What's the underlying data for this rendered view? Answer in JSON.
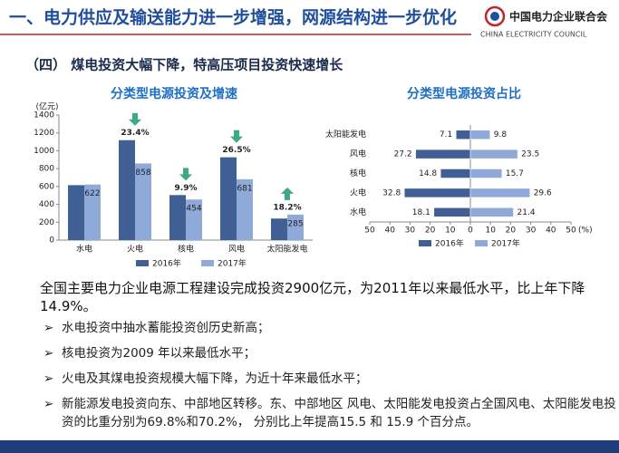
{
  "header": {
    "title": "一、电力供应及输送能力进一步增强，网源结构进一步优化",
    "logo_cn": "中国电力企业联合会",
    "logo_en": "CHINA ELECTRICITY COUNCIL"
  },
  "section_title": "（四） 煤电投资大幅下降，特高压项目投资快速增长",
  "chart_data": [
    {
      "type": "bar",
      "title": "分类型电源投资及增速",
      "y_label": "(亿元)",
      "categories": [
        "水电",
        "火电",
        "核电",
        "风电",
        "太阳能发电"
      ],
      "series": [
        {
          "name": "2016年",
          "color": "#3f5f95",
          "values": [
            615,
            1119,
            504,
            927,
            241
          ]
        },
        {
          "name": "2017年",
          "color": "#8fa9d9",
          "values": [
            622,
            858,
            454,
            681,
            285
          ],
          "labeled": true
        }
      ],
      "annotations": [
        null,
        {
          "text": "23.4%",
          "direction": "down"
        },
        {
          "text": "9.9%",
          "direction": "down"
        },
        {
          "text": "26.5%",
          "direction": "down"
        },
        {
          "text": "18.2%",
          "direction": "up"
        }
      ],
      "arrow_color": "#3daa82",
      "ylim": [
        0,
        1400
      ],
      "yticks": [
        0,
        200,
        400,
        600,
        800,
        1000,
        1200,
        1400
      ]
    },
    {
      "type": "butterfly",
      "title": "分类型电源投资占比",
      "x_unit": "(%)",
      "categories": [
        "太阳能发电",
        "风电",
        "核电",
        "火电",
        "水电"
      ],
      "series": [
        {
          "name": "2016年",
          "color": "#3f5f95",
          "values": [
            7.1,
            27.2,
            14.8,
            32.8,
            18.1
          ],
          "side": "left"
        },
        {
          "name": "2017年",
          "color": "#8fa9d9",
          "values": [
            9.8,
            23.5,
            15.7,
            29.6,
            21.4
          ],
          "side": "right"
        }
      ],
      "xlim": [
        -50,
        50
      ],
      "xticks": [
        {
          "value": -50,
          "label": "50"
        },
        {
          "value": -40,
          "label": "40"
        },
        {
          "value": -30,
          "label": "30"
        },
        {
          "value": -20,
          "label": "20"
        },
        {
          "value": -10,
          "label": "10"
        },
        0,
        10,
        20,
        30,
        40,
        50
      ]
    }
  ],
  "summary": "全国主要电力企业电源工程建设完成投资2900亿元，为2011年以来最低水平，比上年下降14.9%。",
  "bullets": [
    "水电投资中抽水蓄能投资创历史新高；",
    "核电投资为2009 年以来最低水平；",
    "火电及其煤电投资规模大幅下降，为近十年来最低水平；",
    "新能源发电投资向东、中部地区转移。东、中部地区 风电、太阳能发电投资占全国风电、太阳能发电投资的比重分别为69.8%和70.2%， 分别比上年提高15.5 和 15.9 个百分点。"
  ]
}
